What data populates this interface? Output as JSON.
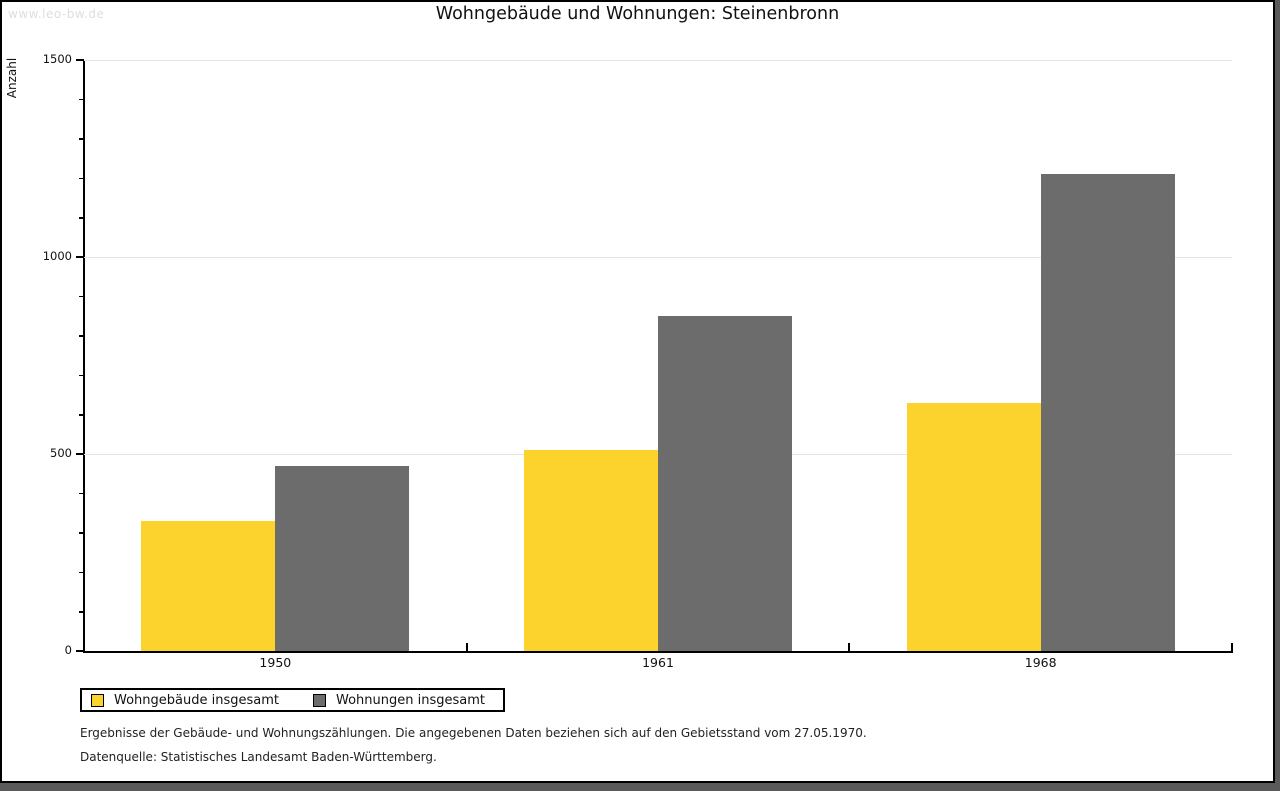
{
  "watermark": "www.leo-bw.de",
  "title": "Wohngebäude und Wohnungen: Steinenbronn",
  "chart_data": {
    "type": "bar",
    "categories": [
      "1950",
      "1961",
      "1968"
    ],
    "series": [
      {
        "name": "Wohngebäude insgesamt",
        "color": "#fcd32d",
        "values": [
          330,
          510,
          630
        ]
      },
      {
        "name": "Wohnungen insgesamt",
        "color": "#6c6c6c",
        "values": [
          470,
          850,
          1210
        ]
      }
    ],
    "xlabel": "",
    "ylabel": "Anzahl",
    "ylim": [
      0,
      1500
    ],
    "yticks_major": [
      0,
      500,
      1000,
      1500
    ],
    "minor_tick_step": 100,
    "grid": true,
    "gridline_color": "#e4e4e4",
    "legend_position": "bottom"
  },
  "legend": {
    "items": [
      {
        "label": "Wohngebäude insgesamt",
        "color": "#fcd32d"
      },
      {
        "label": "Wohnungen insgesamt",
        "color": "#6c6c6c"
      }
    ]
  },
  "footnotes": {
    "line1": "Ergebnisse der Gebäude- und Wohnungszählungen. Die angegebenen Daten beziehen sich auf den Gebietsstand vom 27.05.1970.",
    "line2": "Datenquelle: Statistisches Landesamt Baden-Württemberg."
  }
}
